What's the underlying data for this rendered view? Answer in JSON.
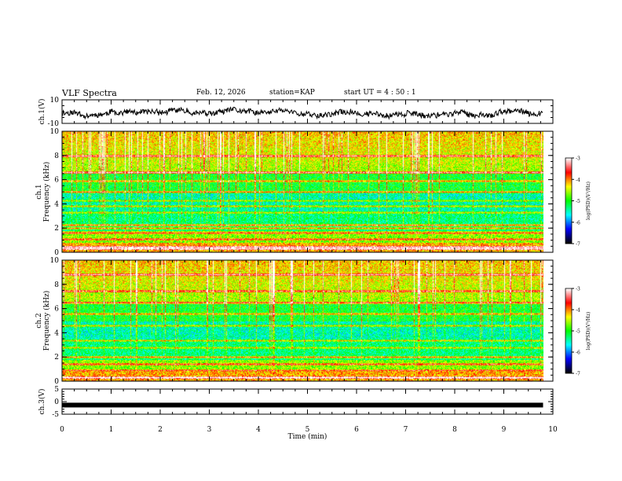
{
  "header": {
    "title": "VLF Spectra",
    "date": "Feb. 12, 2026",
    "station": "station=KAP",
    "start_ut": "start UT =  4 : 50 : 1"
  },
  "chart_data": [
    {
      "name": "ch1-waveform",
      "type": "line",
      "ylabel": "ch.1(V)",
      "xlim": [
        0,
        10
      ],
      "ylim": [
        -10,
        10
      ],
      "yticks": [
        -10,
        10
      ],
      "tick_labels": [
        "-10",
        "10"
      ],
      "xrange_data": [
        0,
        9.8
      ],
      "seed": 11,
      "amplitude": 4.5
    },
    {
      "name": "ch1-spectrogram",
      "type": "heatmap",
      "ylabel": "ch.1\nFrequency (kHz)",
      "xlim": [
        0,
        10
      ],
      "ylim": [
        0,
        10
      ],
      "yticks": [
        0,
        2,
        4,
        6,
        8,
        10
      ],
      "tick_labels": [
        "0",
        "2",
        "4",
        "6",
        "8",
        "10"
      ],
      "xrange_data": [
        0,
        9.8
      ],
      "seed": 23,
      "bands": [
        {
          "freq": 0.3,
          "level": 0.85
        },
        {
          "freq": 0.45,
          "level": 0.7
        },
        {
          "freq": 1.1,
          "level": 0.6
        },
        {
          "freq": 1.6,
          "level": 0.55
        },
        {
          "freq": 2.0,
          "level": 0.75
        },
        {
          "freq": 2.3,
          "level": 0.85
        },
        {
          "freq": 3.3,
          "level": 0.6
        },
        {
          "freq": 3.8,
          "level": 0.65
        },
        {
          "freq": 4.3,
          "level": 0.55
        },
        {
          "freq": 5.0,
          "level": 0.7
        },
        {
          "freq": 5.9,
          "level": 0.6
        },
        {
          "freq": 6.6,
          "level": 0.75
        },
        {
          "freq": 8.0,
          "level": 0.65
        }
      ]
    },
    {
      "name": "ch2-spectrogram",
      "type": "heatmap",
      "ylabel": "ch.2\nFrequency (kHz)",
      "xlim": [
        0,
        10
      ],
      "ylim": [
        0,
        10
      ],
      "yticks": [
        0,
        2,
        4,
        6,
        8,
        10
      ],
      "tick_labels": [
        "0",
        "2",
        "4",
        "6",
        "8",
        "10"
      ],
      "xrange_data": [
        0,
        9.8
      ],
      "seed": 47,
      "bands": [
        {
          "freq": 0.3,
          "level": 0.85
        },
        {
          "freq": 0.9,
          "level": 0.6
        },
        {
          "freq": 1.4,
          "level": 0.6
        },
        {
          "freq": 2.0,
          "level": 0.8
        },
        {
          "freq": 2.8,
          "level": 0.55
        },
        {
          "freq": 3.4,
          "level": 0.7
        },
        {
          "freq": 4.6,
          "level": 0.65
        },
        {
          "freq": 5.6,
          "level": 0.6
        },
        {
          "freq": 6.5,
          "level": 0.75
        },
        {
          "freq": 7.5,
          "level": 0.6
        },
        {
          "freq": 8.8,
          "level": 0.65
        }
      ]
    },
    {
      "name": "ch3-waveform",
      "type": "line",
      "ylabel": "ch.3(V)",
      "xlim": [
        0,
        10
      ],
      "ylim": [
        -5,
        5
      ],
      "yticks": [
        -5,
        0,
        5
      ],
      "tick_labels": [
        "-5",
        "0",
        "5"
      ],
      "xrange_data": [
        0,
        9.8
      ],
      "value": 0.2
    }
  ],
  "x_axis": {
    "label": "Time (min)",
    "ticks": [
      0,
      1,
      2,
      3,
      4,
      5,
      6,
      7,
      8,
      9,
      10
    ],
    "tick_labels": [
      "0",
      "1",
      "2",
      "3",
      "4",
      "5",
      "6",
      "7",
      "8",
      "9",
      "10"
    ]
  },
  "colorbars": [
    {
      "name": "ch1-colorbar",
      "label": "log(PSD)(V²/Hz)",
      "range": [
        -7,
        -3
      ],
      "ticks": [
        -7,
        -6,
        -5,
        -4,
        -3
      ],
      "tick_labels": [
        "-7",
        "-6",
        "-5",
        "-4",
        "-3"
      ]
    },
    {
      "name": "ch2-colorbar",
      "label": "log(PSD)(V²/Hz)",
      "range": [
        -7,
        -3
      ],
      "ticks": [
        -7,
        -6,
        -5,
        -4,
        -3
      ],
      "tick_labels": [
        "-7",
        "-6",
        "-5",
        "-4",
        "-3"
      ]
    }
  ],
  "colors": {
    "trace": "#000000",
    "colormap": [
      "#000000",
      "#0000ff",
      "#00ffff",
      "#00ff00",
      "#ffff00",
      "#ff0000",
      "#ffffff"
    ]
  }
}
